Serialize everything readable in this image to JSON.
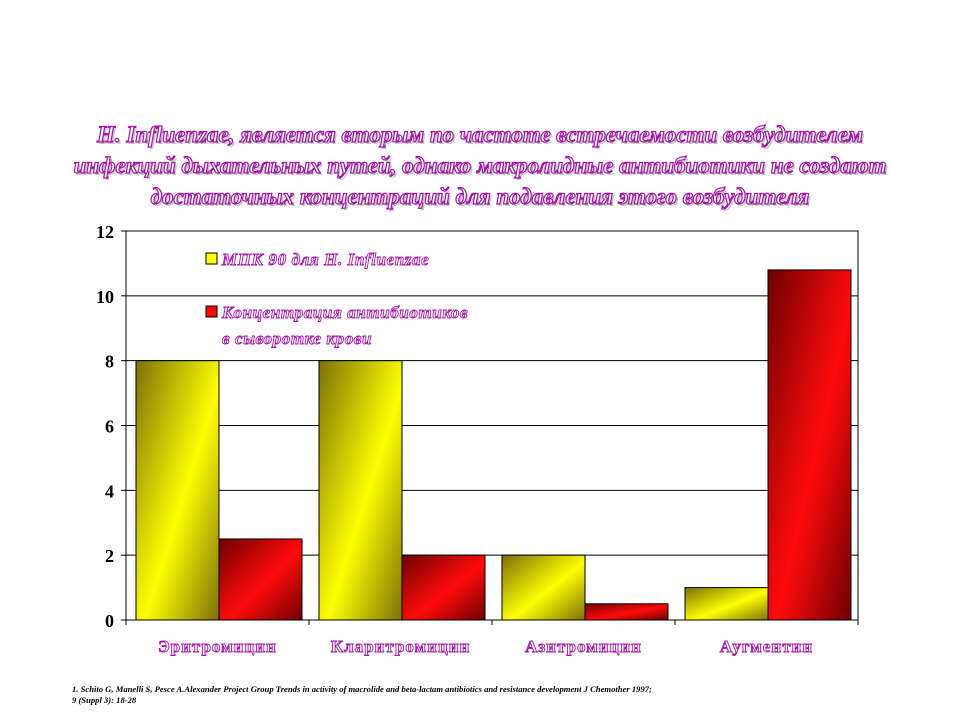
{
  "title_lines": [
    "H. Influenzae, является вторым по частоте встречаемости возбудителем",
    "инфекций дыхательных путей, однако макролидные антибиотики не создают",
    "достаточных концентраций для подавления этого возбудителя"
  ],
  "colors": {
    "series1_light": "#ffff00",
    "series1_dark": "#7b7108",
    "series2_light": "#ff0b0b",
    "series2_dark": "#6e0000",
    "title_stroke": "#a316a8",
    "legend_text_stroke": "#a316a8"
  },
  "chart_data": {
    "type": "bar",
    "title": "",
    "xlabel": "",
    "ylabel": "",
    "ylim": [
      0,
      12
    ],
    "yticks": [
      0,
      2,
      4,
      6,
      8,
      10,
      12
    ],
    "grid": true,
    "legend_placement": "top-left",
    "categories": [
      "Эритромицин",
      "Кларитромицин",
      "Азитромицин",
      "Аугментин"
    ],
    "series": [
      {
        "name": "МПК 90 для H. Influenzae",
        "legend_lines": [
          "МПК 90 для H. Influenzae"
        ],
        "values": [
          8,
          8,
          2,
          1
        ]
      },
      {
        "name": "Концентрация антибиотиков в сыворотке крови",
        "legend_lines": [
          "Концентрация антибиотиков",
          "в  сыворотке крови"
        ],
        "values": [
          2.5,
          2,
          0.5,
          10.8
        ]
      }
    ]
  },
  "footnote_lines": [
    "1. Schito G, Manelli S, Pesce A.Alexander Project Group Trends in activity of macrolide and beta-lactam antibiotics and resistance development J Chemother 1997;",
    "9 (Suppl 3): 18-28"
  ]
}
